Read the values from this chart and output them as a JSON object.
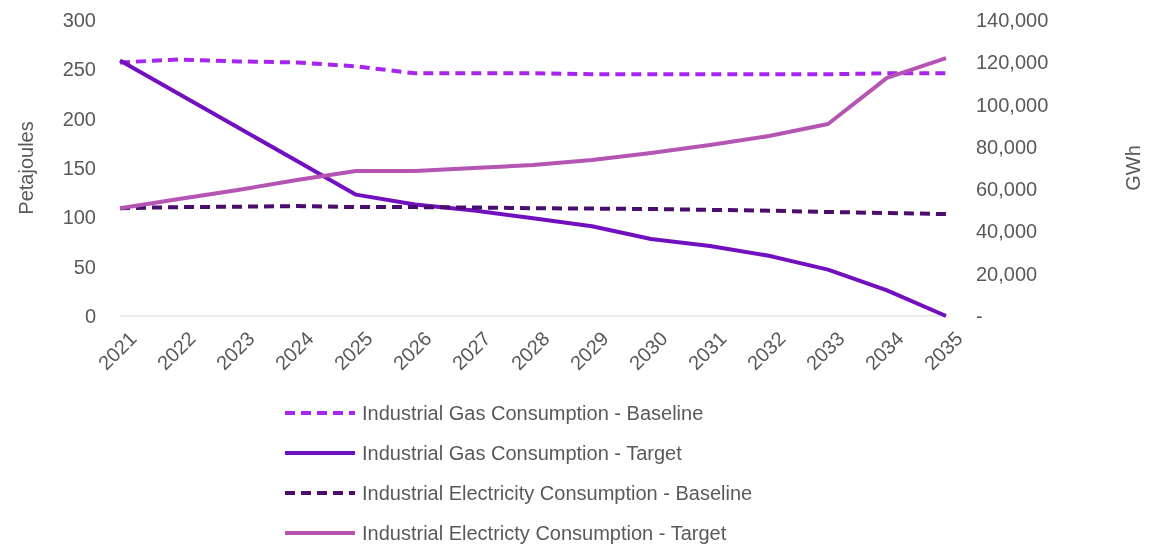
{
  "chart_data": {
    "type": "line",
    "ylabel": "Petajoules",
    "y2label": "GWh",
    "categories": [
      "2021",
      "2022",
      "2023",
      "2024",
      "2025",
      "2026",
      "2027",
      "2028",
      "2029",
      "2030",
      "2031",
      "2032",
      "2033",
      "2034",
      "2035"
    ],
    "ylim": [
      0,
      300
    ],
    "yticks": [
      0,
      50,
      100,
      150,
      200,
      250,
      300
    ],
    "y2lim": [
      0,
      140000
    ],
    "y2ticks": [
      {
        "value": 0,
        "label": "-"
      },
      {
        "value": 20000,
        "label": "20,000"
      },
      {
        "value": 40000,
        "label": "40,000"
      },
      {
        "value": 60000,
        "label": "60,000"
      },
      {
        "value": 80000,
        "label": "80,000"
      },
      {
        "value": 100000,
        "label": "100,000"
      },
      {
        "value": 120000,
        "label": "120,000"
      },
      {
        "value": 140000,
        "label": "140,000"
      }
    ],
    "grid": false,
    "legend": "bottom",
    "marker": "none",
    "series": [
      {
        "name": "Industrial Gas Consumption - Baseline",
        "color": "#a625f0",
        "line_style": "dashed",
        "values": [
          257,
          260,
          258,
          257,
          253,
          246,
          246,
          246,
          245,
          245,
          245,
          245,
          245,
          246,
          246
        ]
      },
      {
        "name": "Industrial Gas Consumption - Target",
        "color": "#7210c0",
        "line_style": "solid",
        "values": [
          259,
          225,
          191,
          157,
          123,
          113,
          107,
          99,
          91,
          78,
          71,
          61,
          47,
          26,
          0
        ]
      },
      {
        "name": "Industrial Electricity Consumption - Baseline",
        "color": "#4a0d6e",
        "line_style": "dashed",
        "axis": "y2",
        "values": [
          51000,
          51500,
          51700,
          52000,
          51500,
          51500,
          51300,
          51000,
          50800,
          50600,
          50200,
          49800,
          49200,
          48700,
          48200
        ]
      },
      {
        "name": "Industrial Electricty Consumption - Target",
        "color": "#b455b4",
        "line_style": "solid",
        "axis": "y2",
        "values": [
          51000,
          55300,
          59600,
          64300,
          68600,
          68600,
          70000,
          71400,
          73800,
          77100,
          80900,
          85100,
          90800,
          112600,
          122000
        ]
      }
    ]
  }
}
